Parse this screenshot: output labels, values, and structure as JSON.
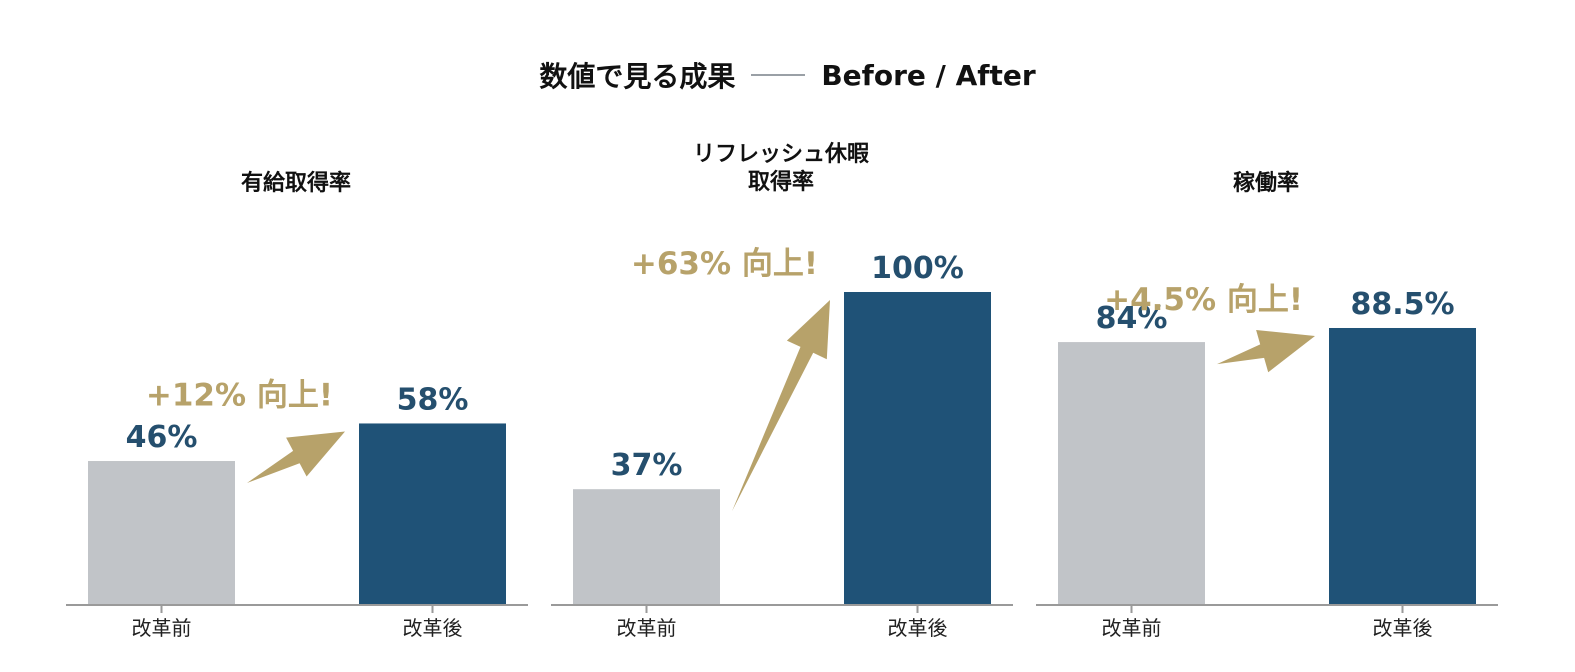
{
  "header": {
    "title_main": "数値で見る成果",
    "title_sub": "Before / After"
  },
  "colors": {
    "before": "#c1c4c8",
    "after": "#1f5277",
    "value_label": "#254f6e",
    "delta": "#b7a26a",
    "axis": "#9a9a9a"
  },
  "chart_data": [
    {
      "type": "bar",
      "title": "有給取得率",
      "categories": [
        "改革前",
        "改革後"
      ],
      "values": [
        46,
        58
      ],
      "value_labels": [
        "46%",
        "58%"
      ],
      "annotation": "+12% 向上!",
      "ylim": [
        0,
        100
      ],
      "grid": false
    },
    {
      "type": "bar",
      "title": "リフレッシュ休暇\n取得率",
      "categories": [
        "改革前",
        "改革後"
      ],
      "values": [
        37,
        100
      ],
      "value_labels": [
        "37%",
        "100%"
      ],
      "annotation": "+63% 向上!",
      "ylim": [
        0,
        100
      ],
      "grid": false
    },
    {
      "type": "bar",
      "title": "稼働率",
      "categories": [
        "改革前",
        "改革後"
      ],
      "values": [
        84,
        88.5
      ],
      "value_labels": [
        "84%",
        "88.5%"
      ],
      "annotation": "+4.5% 向上!",
      "ylim": [
        0,
        100
      ],
      "grid": false
    }
  ]
}
